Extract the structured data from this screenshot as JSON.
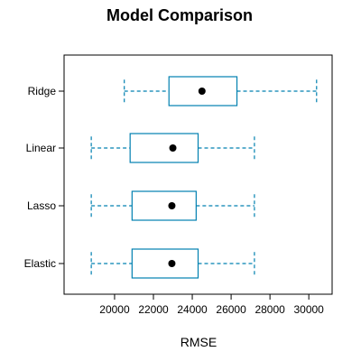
{
  "chart_data": {
    "type": "boxplot",
    "title": "Model Comparison",
    "xlabel": "RMSE",
    "ylabel": "",
    "xlim": [
      17400,
      31200
    ],
    "xticks": [
      20000,
      22000,
      24000,
      26000,
      28000,
      30000
    ],
    "xtick_labels": [
      "20000",
      "22000",
      "24000",
      "26000",
      "28000",
      "30000"
    ],
    "categories": [
      "Ridge",
      "Linear",
      "Lasso",
      "Elastic"
    ],
    "series": [
      {
        "category": "Ridge",
        "min": 20500,
        "q1": 22800,
        "median": 24500,
        "q3": 26300,
        "max": 30400
      },
      {
        "category": "Linear",
        "min": 18800,
        "q1": 20800,
        "median": 23000,
        "q3": 24300,
        "max": 27200
      },
      {
        "category": "Lasso",
        "min": 18800,
        "q1": 20900,
        "median": 22950,
        "q3": 24200,
        "max": 27200
      },
      {
        "category": "Elastic",
        "min": 18800,
        "q1": 20900,
        "median": 22950,
        "q3": 24300,
        "max": 27200
      }
    ],
    "grid": false,
    "legend": "none",
    "colors": {
      "box": "#0080b0",
      "median_dot": "#000000",
      "axis": "#000000"
    }
  }
}
